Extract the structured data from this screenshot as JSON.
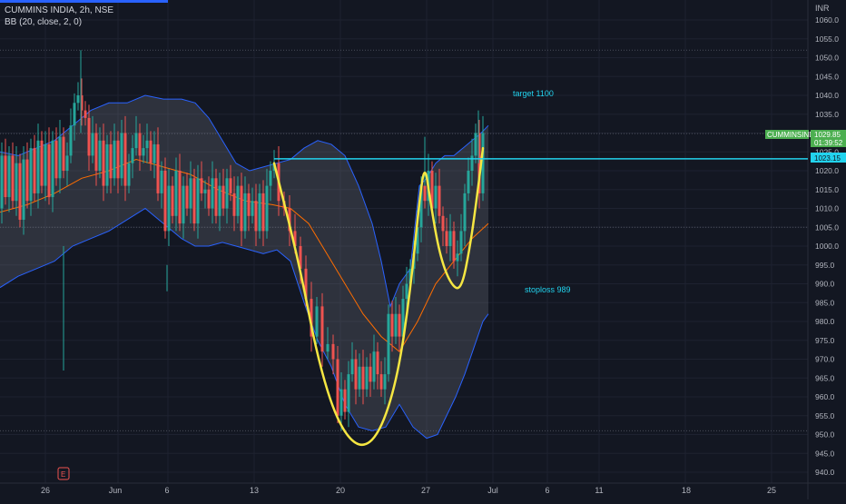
{
  "header": {
    "symbol_line": "CUMMINS INDIA, 2h, NSE",
    "indicator_line": "BB (20, close, 2, 0)"
  },
  "currency": "INR",
  "annotations": {
    "target": "target 1100",
    "stoploss": "stoploss 989"
  },
  "price_tags": {
    "symbol_tag": "CUMMINSIND",
    "last_price": "1029.85",
    "countdown": "01:39:52",
    "level_line": "1023.15"
  },
  "colors": {
    "background": "#131722",
    "up_candle": "#26a69a",
    "down_candle": "#ef5350",
    "bb_band_line": "#2962ff",
    "bb_fill": "#787b86",
    "bb_basis": "#ff6d00",
    "pattern_stroke": "#f5e642",
    "level_line": "#22d3ee",
    "axis_text": "#b2b5be",
    "last_price_tag": "#4caf50"
  },
  "chart_data": {
    "type": "candlestick",
    "symbol": "CUMMINS INDIA",
    "interval": "2h",
    "exchange": "NSE",
    "indicator": "BB (20, close, 2, 0)",
    "y_axis": {
      "range": [
        937,
        1063
      ],
      "ticks": [
        940,
        945,
        950,
        955,
        960,
        965,
        970,
        975,
        980,
        985,
        990,
        995,
        1000,
        1005,
        1010,
        1015,
        1020,
        1025,
        1030,
        1035,
        1040,
        1045,
        1050,
        1055,
        1060
      ]
    },
    "x_axis_labels": [
      "26",
      "Jun",
      "6",
      "13",
      "20",
      "27",
      "Jul",
      "6",
      "11",
      "18",
      "25"
    ],
    "horizontal_level": 1023.15,
    "price_path": [
      [
        0,
        1010
      ],
      [
        4,
        1024
      ],
      [
        8,
        1013
      ],
      [
        12,
        1024
      ],
      [
        16,
        1012
      ],
      [
        20,
        1022
      ],
      [
        24,
        1007
      ],
      [
        28,
        1023
      ],
      [
        32,
        1012
      ],
      [
        36,
        1026
      ],
      [
        40,
        1014
      ],
      [
        44,
        1028
      ],
      [
        48,
        1016
      ],
      [
        52,
        1027
      ],
      [
        56,
        1013
      ],
      [
        60,
        1028
      ],
      [
        64,
        1018
      ],
      [
        68,
        1029
      ],
      [
        72,
        1020
      ],
      [
        76,
        1024
      ],
      [
        80,
        1032
      ],
      [
        84,
        1038
      ],
      [
        88,
        1040
      ],
      [
        92,
        1036
      ],
      [
        96,
        1034
      ],
      [
        100,
        1024
      ],
      [
        104,
        1030
      ],
      [
        108,
        1020
      ],
      [
        112,
        1028
      ],
      [
        116,
        1016
      ],
      [
        120,
        1027
      ],
      [
        124,
        1018
      ],
      [
        128,
        1028
      ],
      [
        132,
        1018
      ],
      [
        136,
        1030
      ],
      [
        140,
        1016
      ],
      [
        144,
        1022
      ],
      [
        148,
        1026
      ],
      [
        152,
        1030
      ],
      [
        156,
        1024
      ],
      [
        160,
        1026
      ],
      [
        164,
        1028
      ],
      [
        168,
        1022
      ],
      [
        172,
        1027
      ],
      [
        176,
        1014
      ],
      [
        180,
        1020
      ],
      [
        184,
        1004
      ],
      [
        188,
        1016
      ],
      [
        192,
        1008
      ],
      [
        196,
        1020
      ],
      [
        200,
        1006
      ],
      [
        204,
        1016
      ],
      [
        208,
        1010
      ],
      [
        212,
        1018
      ],
      [
        216,
        1006
      ],
      [
        220,
        1018
      ],
      [
        224,
        1014
      ],
      [
        228,
        1015
      ],
      [
        232,
        1010
      ],
      [
        236,
        1018
      ],
      [
        240,
        1008
      ],
      [
        244,
        1016
      ],
      [
        248,
        1010
      ],
      [
        252,
        1018
      ],
      [
        256,
        1014
      ],
      [
        260,
        1008
      ],
      [
        264,
        1016
      ],
      [
        268,
        1004
      ],
      [
        272,
        1014
      ],
      [
        276,
        1008
      ],
      [
        280,
        1012
      ],
      [
        284,
        1004
      ],
      [
        288,
        1014
      ],
      [
        292,
        1004
      ],
      [
        296,
        1016
      ],
      [
        300,
        1020
      ],
      [
        304,
        1022
      ],
      [
        310,
        1012
      ],
      [
        316,
        1010
      ],
      [
        322,
        1004
      ],
      [
        328,
        1000
      ],
      [
        334,
        994
      ],
      [
        340,
        986
      ],
      [
        346,
        976
      ],
      [
        352,
        984
      ],
      [
        358,
        972
      ],
      [
        364,
        974
      ],
      [
        370,
        970
      ],
      [
        374,
        955
      ],
      [
        378,
        962
      ],
      [
        382,
        956
      ],
      [
        386,
        966
      ],
      [
        390,
        970
      ],
      [
        394,
        962
      ],
      [
        398,
        968
      ],
      [
        402,
        962
      ],
      [
        406,
        968
      ],
      [
        410,
        964
      ],
      [
        414,
        972
      ],
      [
        418,
        966
      ],
      [
        422,
        962
      ],
      [
        426,
        966
      ],
      [
        430,
        982
      ],
      [
        434,
        976
      ],
      [
        438,
        982
      ],
      [
        442,
        976
      ],
      [
        446,
        986
      ],
      [
        450,
        990
      ],
      [
        454,
        994
      ],
      [
        458,
        998
      ],
      [
        462,
        1005
      ],
      [
        466,
        1016
      ],
      [
        470,
        1012
      ],
      [
        474,
        1020
      ],
      [
        478,
        1010
      ],
      [
        482,
        1016
      ],
      [
        486,
        1008
      ],
      [
        490,
        1004
      ],
      [
        494,
        1000
      ],
      [
        498,
        1004
      ],
      [
        502,
        996
      ],
      [
        506,
        998
      ],
      [
        510,
        1004
      ],
      [
        514,
        1014
      ],
      [
        518,
        1020
      ],
      [
        522,
        1024
      ],
      [
        526,
        1030
      ],
      [
        530,
        1014
      ],
      [
        534,
        1030
      ]
    ],
    "bollinger_upper": [
      [
        0,
        1025
      ],
      [
        20,
        1024
      ],
      [
        40,
        1026
      ],
      [
        60,
        1028
      ],
      [
        80,
        1032
      ],
      [
        100,
        1036
      ],
      [
        120,
        1038
      ],
      [
        140,
        1038
      ],
      [
        160,
        1040
      ],
      [
        180,
        1039
      ],
      [
        200,
        1039
      ],
      [
        215,
        1038
      ],
      [
        230,
        1034
      ],
      [
        245,
        1028
      ],
      [
        260,
        1022
      ],
      [
        275,
        1020
      ],
      [
        290,
        1021
      ],
      [
        305,
        1022
      ],
      [
        320,
        1023
      ],
      [
        335,
        1026
      ],
      [
        350,
        1028
      ],
      [
        365,
        1027
      ],
      [
        380,
        1024
      ],
      [
        395,
        1016
      ],
      [
        410,
        1006
      ],
      [
        420,
        996
      ],
      [
        430,
        984
      ],
      [
        440,
        990
      ],
      [
        452,
        994
      ],
      [
        462,
        1016
      ],
      [
        470,
        1018
      ],
      [
        480,
        1022
      ],
      [
        490,
        1024
      ],
      [
        500,
        1024
      ],
      [
        510,
        1026
      ],
      [
        520,
        1028
      ],
      [
        530,
        1030
      ],
      [
        538,
        1032
      ]
    ],
    "bollinger_lower": [
      [
        0,
        989
      ],
      [
        20,
        992
      ],
      [
        40,
        994
      ],
      [
        60,
        996
      ],
      [
        80,
        1000
      ],
      [
        100,
        1002
      ],
      [
        120,
        1004
      ],
      [
        140,
        1007
      ],
      [
        160,
        1010
      ],
      [
        180,
        1006
      ],
      [
        200,
        1002
      ],
      [
        215,
        1000
      ],
      [
        230,
        1000
      ],
      [
        245,
        1001
      ],
      [
        260,
        1000
      ],
      [
        275,
        999
      ],
      [
        290,
        998
      ],
      [
        305,
        999
      ],
      [
        320,
        996
      ],
      [
        335,
        985
      ],
      [
        350,
        975
      ],
      [
        365,
        968
      ],
      [
        380,
        958
      ],
      [
        395,
        952
      ],
      [
        410,
        951
      ],
      [
        425,
        952
      ],
      [
        440,
        958
      ],
      [
        455,
        952
      ],
      [
        470,
        949
      ],
      [
        482,
        950
      ],
      [
        492,
        955
      ],
      [
        502,
        960
      ],
      [
        512,
        966
      ],
      [
        522,
        973
      ],
      [
        532,
        980
      ],
      [
        538,
        982
      ]
    ],
    "bollinger_basis": [
      [
        0,
        1009
      ],
      [
        30,
        1011
      ],
      [
        60,
        1014
      ],
      [
        90,
        1018
      ],
      [
        120,
        1020
      ],
      [
        150,
        1023
      ],
      [
        180,
        1021
      ],
      [
        210,
        1019
      ],
      [
        240,
        1015
      ],
      [
        270,
        1012
      ],
      [
        300,
        1011
      ],
      [
        320,
        1010
      ],
      [
        340,
        1006
      ],
      [
        360,
        998
      ],
      [
        380,
        990
      ],
      [
        400,
        982
      ],
      [
        420,
        976
      ],
      [
        440,
        972
      ],
      [
        460,
        980
      ],
      [
        480,
        990
      ],
      [
        500,
        996
      ],
      [
        520,
        1002
      ],
      [
        538,
        1006
      ]
    ],
    "pattern_curve": {
      "name": "cup and handle",
      "points": [
        [
          302,
          1022
        ],
        [
          330,
          995
        ],
        [
          350,
          970
        ],
        [
          372,
          953
        ],
        [
          396,
          946
        ],
        [
          418,
          950
        ],
        [
          438,
          965
        ],
        [
          452,
          988
        ],
        [
          462,
          1012
        ],
        [
          468,
          1022
        ],
        [
          474,
          1012
        ],
        [
          484,
          998
        ],
        [
          496,
          990
        ],
        [
          508,
          988
        ],
        [
          518,
          1000
        ],
        [
          526,
          1014
        ],
        [
          532,
          1026
        ]
      ]
    },
    "annotations": [
      {
        "text": "target 1100",
        "x": 565,
        "y": 1041
      },
      {
        "text": "stoploss 989",
        "x": 578,
        "y": 988.5
      }
    ]
  }
}
